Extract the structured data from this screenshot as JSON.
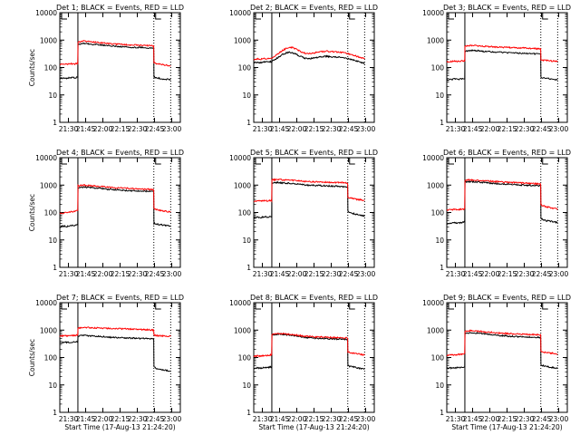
{
  "figure": {
    "background": "#ffffff",
    "axis_color": "#000000",
    "events_color": "#000000",
    "lld_color": "#ff0000"
  },
  "chart_data": [
    {
      "type": "line",
      "title": "Det 1; BLACK = Events, RED = LLD",
      "xlabel": "",
      "ylabel": "Counts/sec",
      "xlim": [
        0,
        100
      ],
      "ylim": [
        1,
        10000
      ],
      "yscale": "log",
      "xticks": [
        "21:30",
        "21:45",
        "22:00",
        "22:15",
        "22:30",
        "22:45",
        "23:00"
      ],
      "yticks": [
        "1",
        "10",
        "100",
        "1000",
        "10000"
      ],
      "markers": [
        15,
        78,
        92
      ],
      "x": [
        0,
        3,
        6,
        9,
        12,
        14.9,
        15.1,
        20,
        25,
        30,
        35,
        40,
        45,
        50,
        55,
        60,
        65,
        70,
        75,
        77.9,
        78.1,
        80,
        83,
        86,
        89,
        92
      ],
      "series": [
        {
          "name": "Events",
          "color": "#000000",
          "values": [
            40,
            42,
            41,
            43,
            42,
            44,
            700,
            760,
            720,
            690,
            650,
            620,
            600,
            580,
            560,
            550,
            540,
            530,
            520,
            510,
            45,
            42,
            40,
            38,
            37,
            36
          ]
        },
        {
          "name": "LLD",
          "color": "#ff0000",
          "values": [
            130,
            135,
            132,
            138,
            134,
            140,
            850,
            920,
            880,
            830,
            790,
            750,
            720,
            700,
            680,
            660,
            650,
            640,
            630,
            620,
            150,
            140,
            130,
            125,
            120,
            115
          ]
        }
      ]
    },
    {
      "type": "line",
      "title": "Det 2; BLACK = Events, RED = LLD",
      "xlabel": "",
      "ylabel": "",
      "xlim": [
        0,
        100
      ],
      "ylim": [
        1,
        10000
      ],
      "yscale": "log",
      "xticks": [
        "21:30",
        "21:45",
        "22:00",
        "22:15",
        "22:30",
        "22:45",
        "23:00"
      ],
      "yticks": [
        "1",
        "10",
        "100",
        "1000",
        "10000"
      ],
      "markers": [
        15,
        78,
        92
      ],
      "x": [
        0,
        3,
        6,
        9,
        12,
        15,
        18,
        21,
        24,
        27,
        30,
        33,
        36,
        39,
        42,
        45,
        48,
        51,
        54,
        57,
        60,
        63,
        66,
        69,
        72,
        75,
        78,
        81,
        84,
        87,
        90,
        92
      ],
      "series": [
        {
          "name": "Events",
          "color": "#000000",
          "values": [
            150,
            155,
            152,
            160,
            158,
            165,
            200,
            250,
            300,
            340,
            360,
            330,
            290,
            250,
            220,
            210,
            215,
            225,
            240,
            250,
            255,
            250,
            245,
            240,
            235,
            225,
            210,
            195,
            180,
            165,
            150,
            140
          ]
        },
        {
          "name": "LLD",
          "color": "#ff0000",
          "values": [
            200,
            205,
            200,
            210,
            212,
            220,
            270,
            340,
            420,
            500,
            540,
            520,
            450,
            380,
            340,
            320,
            330,
            350,
            370,
            380,
            390,
            385,
            380,
            370,
            360,
            340,
            320,
            295,
            270,
            245,
            220,
            205
          ]
        }
      ]
    },
    {
      "type": "line",
      "title": "Det 3; BLACK = Events, RED = LLD",
      "xlabel": "",
      "ylabel": "",
      "xlim": [
        0,
        100
      ],
      "ylim": [
        1,
        10000
      ],
      "yscale": "log",
      "xticks": [
        "21:30",
        "21:45",
        "22:00",
        "22:15",
        "22:30",
        "22:45",
        "23:00"
      ],
      "yticks": [
        "1",
        "10",
        "100",
        "1000",
        "10000"
      ],
      "markers": [
        15,
        78,
        92
      ],
      "x": [
        0,
        3,
        6,
        9,
        12,
        14.9,
        15.1,
        20,
        25,
        30,
        35,
        40,
        45,
        50,
        55,
        60,
        65,
        70,
        75,
        77.9,
        78.1,
        80,
        83,
        86,
        89,
        92
      ],
      "series": [
        {
          "name": "Events",
          "color": "#000000",
          "values": [
            35,
            36,
            38,
            37,
            39,
            40,
            400,
            420,
            410,
            390,
            380,
            370,
            360,
            350,
            340,
            335,
            330,
            320,
            310,
            300,
            45,
            42,
            40,
            38,
            36,
            35
          ]
        },
        {
          "name": "LLD",
          "color": "#ff0000",
          "values": [
            160,
            165,
            170,
            168,
            172,
            175,
            600,
            640,
            620,
            600,
            580,
            560,
            550,
            540,
            530,
            520,
            510,
            500,
            490,
            480,
            190,
            185,
            180,
            175,
            170,
            165
          ]
        }
      ]
    },
    {
      "type": "line",
      "title": "Det 4; BLACK = Events, RED = LLD",
      "xlabel": "",
      "ylabel": "Counts/sec",
      "xlim": [
        0,
        100
      ],
      "ylim": [
        1,
        10000
      ],
      "yscale": "log",
      "xticks": [
        "21:30",
        "21:45",
        "22:00",
        "22:15",
        "22:30",
        "22:45",
        "23:00"
      ],
      "yticks": [
        "1",
        "10",
        "100",
        "1000",
        "10000"
      ],
      "markers": [
        15,
        78,
        92
      ],
      "x": [
        0,
        3,
        6,
        9,
        12,
        14.9,
        15.1,
        20,
        25,
        30,
        35,
        40,
        45,
        50,
        55,
        60,
        65,
        70,
        75,
        77.9,
        78.1,
        80,
        83,
        86,
        89,
        92
      ],
      "series": [
        {
          "name": "Events",
          "color": "#000000",
          "values": [
            30,
            32,
            31,
            33,
            34,
            35,
            800,
            850,
            820,
            780,
            740,
            700,
            680,
            660,
            640,
            620,
            610,
            600,
            590,
            580,
            40,
            38,
            36,
            35,
            33,
            32
          ]
        },
        {
          "name": "LLD",
          "color": "#ff0000",
          "values": [
            90,
            95,
            100,
            105,
            110,
            115,
            950,
            1000,
            960,
            920,
            880,
            840,
            810,
            790,
            770,
            750,
            730,
            710,
            700,
            690,
            140,
            130,
            120,
            115,
            110,
            105
          ]
        }
      ]
    },
    {
      "type": "line",
      "title": "Det 5; BLACK = Events, RED = LLD",
      "xlabel": "",
      "ylabel": "",
      "xlim": [
        0,
        100
      ],
      "ylim": [
        1,
        10000
      ],
      "yscale": "log",
      "xticks": [
        "21:30",
        "21:45",
        "22:00",
        "22:15",
        "22:30",
        "22:45",
        "23:00"
      ],
      "yticks": [
        "1",
        "10",
        "100",
        "1000",
        "10000"
      ],
      "markers": [
        15,
        78,
        92
      ],
      "x": [
        0,
        3,
        6,
        9,
        12,
        14.9,
        15.1,
        20,
        25,
        30,
        35,
        40,
        45,
        50,
        55,
        60,
        65,
        70,
        75,
        77.9,
        78.1,
        80,
        83,
        86,
        89,
        92
      ],
      "series": [
        {
          "name": "Events",
          "color": "#000000",
          "values": [
            65,
            68,
            66,
            70,
            69,
            72,
            1200,
            1250,
            1200,
            1150,
            1100,
            1050,
            1000,
            980,
            960,
            940,
            920,
            900,
            880,
            870,
            110,
            100,
            90,
            85,
            80,
            75
          ]
        },
        {
          "name": "LLD",
          "color": "#ff0000",
          "values": [
            260,
            265,
            262,
            270,
            268,
            275,
            1550,
            1600,
            1550,
            1500,
            1450,
            1400,
            1350,
            1320,
            1300,
            1280,
            1260,
            1240,
            1220,
            1200,
            360,
            340,
            320,
            300,
            290,
            280
          ]
        }
      ]
    },
    {
      "type": "line",
      "title": "Det 6; BLACK = Events, RED = LLD",
      "xlabel": "",
      "ylabel": "",
      "xlim": [
        0,
        100
      ],
      "ylim": [
        1,
        10000
      ],
      "yscale": "log",
      "xticks": [
        "21:30",
        "21:45",
        "22:00",
        "22:15",
        "22:30",
        "22:45",
        "23:00"
      ],
      "yticks": [
        "1",
        "10",
        "100",
        "1000",
        "10000"
      ],
      "markers": [
        15,
        78,
        92
      ],
      "x": [
        0,
        3,
        6,
        9,
        12,
        14.9,
        15.1,
        20,
        25,
        30,
        35,
        40,
        45,
        50,
        55,
        60,
        65,
        70,
        75,
        77.9,
        78.1,
        80,
        83,
        86,
        89,
        92
      ],
      "series": [
        {
          "name": "Events",
          "color": "#000000",
          "values": [
            38,
            40,
            42,
            41,
            43,
            45,
            1300,
            1350,
            1300,
            1250,
            1200,
            1150,
            1100,
            1080,
            1050,
            1020,
            1000,
            980,
            960,
            940,
            60,
            55,
            50,
            48,
            45,
            43
          ]
        },
        {
          "name": "LLD",
          "color": "#ff0000",
          "values": [
            120,
            125,
            130,
            128,
            132,
            135,
            1500,
            1550,
            1500,
            1450,
            1400,
            1350,
            1300,
            1270,
            1240,
            1210,
            1180,
            1150,
            1120,
            1100,
            190,
            175,
            160,
            150,
            140,
            135
          ]
        }
      ]
    },
    {
      "type": "line",
      "title": "Det 7; BLACK = Events, RED = LLD",
      "xlabel": "Start Time (17-Aug-13 21:24:20)",
      "ylabel": "Counts/sec",
      "xlim": [
        0,
        100
      ],
      "ylim": [
        1,
        10000
      ],
      "yscale": "log",
      "xticks": [
        "21:30",
        "21:45",
        "22:00",
        "22:15",
        "22:30",
        "22:45",
        "23:00"
      ],
      "yticks": [
        "1",
        "10",
        "100",
        "1000",
        "10000"
      ],
      "markers": [
        15,
        78,
        92
      ],
      "x": [
        0,
        3,
        6,
        9,
        12,
        14.9,
        15.1,
        20,
        25,
        30,
        35,
        40,
        45,
        50,
        55,
        60,
        65,
        70,
        75,
        77.9,
        78.1,
        80,
        83,
        86,
        89,
        92
      ],
      "series": [
        {
          "name": "Events",
          "color": "#000000",
          "values": [
            350,
            360,
            355,
            365,
            370,
            380,
            600,
            650,
            620,
            600,
            580,
            560,
            540,
            530,
            520,
            510,
            500,
            490,
            480,
            470,
            45,
            40,
            38,
            35,
            33,
            32
          ]
        },
        {
          "name": "LLD",
          "color": "#ff0000",
          "values": [
            600,
            620,
            610,
            630,
            640,
            650,
            1200,
            1250,
            1220,
            1200,
            1180,
            1160,
            1140,
            1120,
            1100,
            1080,
            1060,
            1040,
            1020,
            1000,
            650,
            630,
            620,
            610,
            600,
            590
          ]
        }
      ]
    },
    {
      "type": "line",
      "title": "Det 8; BLACK = Events, RED = LLD",
      "xlabel": "Start Time (17-Aug-13 21:24:20)",
      "ylabel": "",
      "xlim": [
        0,
        100
      ],
      "ylim": [
        1,
        10000
      ],
      "yscale": "log",
      "xticks": [
        "21:30",
        "21:45",
        "22:00",
        "22:15",
        "22:30",
        "22:45",
        "23:00"
      ],
      "yticks": [
        "1",
        "10",
        "100",
        "1000",
        "10000"
      ],
      "markers": [
        15,
        78,
        92
      ],
      "x": [
        0,
        3,
        6,
        9,
        12,
        14.9,
        15.1,
        20,
        25,
        30,
        35,
        40,
        45,
        50,
        55,
        60,
        65,
        70,
        75,
        77.9,
        78.1,
        80,
        83,
        86,
        89,
        92
      ],
      "series": [
        {
          "name": "Events",
          "color": "#000000",
          "values": [
            40,
            42,
            41,
            43,
            44,
            45,
            650,
            720,
            700,
            650,
            600,
            560,
            530,
            510,
            500,
            490,
            480,
            470,
            460,
            450,
            50,
            47,
            45,
            42,
            40,
            38
          ]
        },
        {
          "name": "LLD",
          "color": "#ff0000",
          "values": [
            110,
            115,
            112,
            118,
            120,
            125,
            700,
            760,
            740,
            700,
            660,
            620,
            590,
            570,
            560,
            550,
            540,
            530,
            520,
            510,
            160,
            150,
            140,
            135,
            130,
            125
          ]
        }
      ]
    },
    {
      "type": "line",
      "title": "Det 9; BLACK = Events, RED = LLD",
      "xlabel": "Start Time (17-Aug-13 21:24:20)",
      "ylabel": "",
      "xlim": [
        0,
        100
      ],
      "ylim": [
        1,
        10000
      ],
      "yscale": "log",
      "xticks": [
        "21:30",
        "21:45",
        "22:00",
        "22:15",
        "22:30",
        "22:45",
        "23:00"
      ],
      "yticks": [
        "1",
        "10",
        "100",
        "1000",
        "10000"
      ],
      "markers": [
        15,
        78,
        92
      ],
      "x": [
        0,
        3,
        6,
        9,
        12,
        14.9,
        15.1,
        20,
        25,
        30,
        35,
        40,
        45,
        50,
        55,
        60,
        65,
        70,
        75,
        77.9,
        78.1,
        80,
        83,
        86,
        89,
        92
      ],
      "series": [
        {
          "name": "Events",
          "color": "#000000",
          "values": [
            40,
            42,
            41,
            43,
            44,
            45,
            750,
            800,
            780,
            740,
            700,
            660,
            630,
            610,
            590,
            570,
            560,
            550,
            540,
            530,
            55,
            50,
            47,
            44,
            42,
            40
          ]
        },
        {
          "name": "LLD",
          "color": "#ff0000",
          "values": [
            120,
            125,
            122,
            128,
            130,
            135,
            900,
            950,
            920,
            880,
            840,
            800,
            770,
            750,
            730,
            710,
            700,
            690,
            680,
            670,
            170,
            160,
            150,
            145,
            140,
            135
          ]
        }
      ]
    }
  ]
}
